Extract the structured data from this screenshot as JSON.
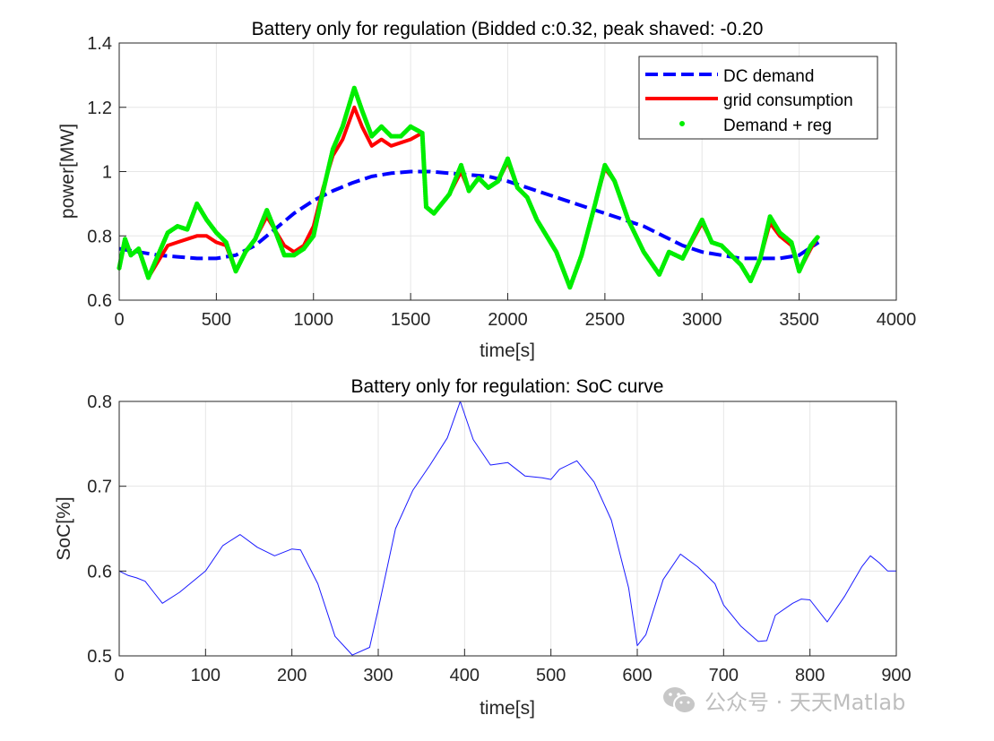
{
  "colors": {
    "dc_demand": "#0000FF",
    "grid_consumption": "#FF0000",
    "demand_reg": "#00EE00",
    "soc": "#1a1aff",
    "grid": "#e6e6e6",
    "axes": "#262626"
  },
  "watermark": {
    "text": "公众号 · 天天Matlab",
    "icon": "wechat-icon"
  },
  "chart_data": [
    {
      "type": "line",
      "title": "Battery only for regulation (Bidded c:0.32, peak shaved: -0.20",
      "xlabel": "time[s]",
      "ylabel": "power[MW]",
      "xlim": [
        0,
        4000
      ],
      "ylim": [
        0.6,
        1.4
      ],
      "xticks": [
        0,
        500,
        1000,
        1500,
        2000,
        2500,
        3000,
        3500,
        4000
      ],
      "yticks": [
        0.6,
        0.8,
        1,
        1.2,
        1.4
      ],
      "ytick_labels": [
        "0.6",
        "0.8",
        "1",
        "1.2",
        "1.4"
      ],
      "grid": true,
      "legend_location": "top-right",
      "legend": [
        "DC demand",
        "grid consumption",
        "Demand + reg"
      ],
      "series": [
        {
          "name": "DC demand",
          "style": "dashed",
          "x": [
            0,
            100,
            200,
            300,
            400,
            500,
            600,
            700,
            800,
            900,
            1000,
            1100,
            1200,
            1300,
            1400,
            1500,
            1600,
            1700,
            1800,
            1900,
            2000,
            2100,
            2200,
            2300,
            2400,
            2500,
            2600,
            2700,
            2800,
            2900,
            3000,
            3100,
            3200,
            3300,
            3400,
            3500,
            3600
          ],
          "values": [
            0.76,
            0.75,
            0.74,
            0.735,
            0.73,
            0.73,
            0.74,
            0.77,
            0.82,
            0.87,
            0.91,
            0.94,
            0.965,
            0.985,
            0.995,
            1.0,
            1.0,
            0.995,
            0.99,
            0.985,
            0.97,
            0.95,
            0.93,
            0.91,
            0.89,
            0.87,
            0.85,
            0.83,
            0.8,
            0.77,
            0.75,
            0.74,
            0.73,
            0.73,
            0.73,
            0.74,
            0.78
          ]
        },
        {
          "name": "grid consumption",
          "style": "solid",
          "x": [
            0,
            30,
            60,
            100,
            150,
            200,
            250,
            300,
            350,
            400,
            450,
            500,
            550,
            600,
            650,
            700,
            760,
            800,
            850,
            900,
            950,
            1000,
            1050,
            1100,
            1150,
            1210,
            1250,
            1300,
            1350,
            1400,
            1450,
            1500,
            1560,
            1580,
            1620,
            1700,
            1760,
            1800,
            1850,
            1900,
            1950,
            2000,
            2050,
            2100,
            2150,
            2200,
            2250,
            2320,
            2380,
            2450,
            2500,
            2550,
            2620,
            2700,
            2780,
            2830,
            2900,
            3000,
            3050,
            3100,
            3200,
            3250,
            3300,
            3350,
            3400,
            3460,
            3500,
            3560,
            3600
          ],
          "values": [
            0.7,
            0.78,
            0.74,
            0.76,
            0.67,
            0.72,
            0.77,
            0.78,
            0.79,
            0.8,
            0.8,
            0.78,
            0.77,
            0.69,
            0.75,
            0.79,
            0.86,
            0.82,
            0.77,
            0.75,
            0.77,
            0.83,
            0.95,
            1.05,
            1.1,
            1.2,
            1.14,
            1.08,
            1.1,
            1.08,
            1.09,
            1.1,
            1.12,
            0.89,
            0.87,
            0.93,
            1.0,
            0.94,
            0.98,
            0.95,
            0.97,
            1.03,
            0.95,
            0.92,
            0.85,
            0.8,
            0.75,
            0.64,
            0.74,
            0.9,
            1.01,
            0.97,
            0.85,
            0.75,
            0.68,
            0.75,
            0.73,
            0.84,
            0.78,
            0.77,
            0.71,
            0.66,
            0.73,
            0.84,
            0.8,
            0.77,
            0.69,
            0.76,
            0.8
          ]
        },
        {
          "name": "Demand + reg",
          "style": "dots",
          "x": [
            0,
            30,
            60,
            100,
            150,
            200,
            250,
            300,
            350,
            400,
            450,
            500,
            550,
            600,
            650,
            700,
            760,
            800,
            850,
            900,
            950,
            1000,
            1050,
            1100,
            1150,
            1210,
            1250,
            1300,
            1350,
            1400,
            1450,
            1500,
            1560,
            1580,
            1620,
            1700,
            1760,
            1800,
            1850,
            1900,
            1950,
            2000,
            2050,
            2100,
            2150,
            2200,
            2250,
            2320,
            2380,
            2450,
            2500,
            2550,
            2620,
            2700,
            2780,
            2830,
            2900,
            3000,
            3050,
            3100,
            3200,
            3250,
            3300,
            3350,
            3400,
            3460,
            3500,
            3560,
            3600
          ],
          "values": [
            0.7,
            0.79,
            0.74,
            0.76,
            0.67,
            0.74,
            0.81,
            0.83,
            0.82,
            0.9,
            0.85,
            0.81,
            0.78,
            0.69,
            0.75,
            0.79,
            0.88,
            0.82,
            0.74,
            0.74,
            0.76,
            0.8,
            0.94,
            1.07,
            1.14,
            1.26,
            1.19,
            1.11,
            1.14,
            1.11,
            1.11,
            1.14,
            1.12,
            0.89,
            0.87,
            0.93,
            1.02,
            0.94,
            0.98,
            0.95,
            0.97,
            1.04,
            0.95,
            0.92,
            0.85,
            0.8,
            0.75,
            0.64,
            0.74,
            0.9,
            1.02,
            0.97,
            0.85,
            0.75,
            0.68,
            0.75,
            0.73,
            0.85,
            0.78,
            0.77,
            0.71,
            0.66,
            0.73,
            0.86,
            0.81,
            0.78,
            0.69,
            0.77,
            0.8
          ]
        }
      ]
    },
    {
      "type": "line",
      "title": "Battery only for regulation: SoC curve",
      "xlabel": "time[s]",
      "ylabel": "SoC[%]",
      "xlim": [
        0,
        900
      ],
      "ylim": [
        0.5,
        0.8
      ],
      "xticks": [
        0,
        100,
        200,
        300,
        400,
        500,
        600,
        700,
        800,
        900
      ],
      "yticks": [
        0.5,
        0.6,
        0.7,
        0.8
      ],
      "ytick_labels": [
        "0.5",
        "0.6",
        "0.7",
        "0.8"
      ],
      "grid": true,
      "series": [
        {
          "name": "SoC",
          "style": "solid",
          "x": [
            0,
            10,
            20,
            30,
            40,
            50,
            70,
            100,
            120,
            140,
            160,
            180,
            200,
            210,
            230,
            250,
            270,
            290,
            300,
            320,
            340,
            360,
            380,
            395,
            410,
            430,
            450,
            470,
            490,
            500,
            510,
            530,
            550,
            570,
            590,
            600,
            610,
            630,
            650,
            670,
            690,
            700,
            720,
            740,
            750,
            760,
            780,
            790,
            800,
            820,
            840,
            860,
            870,
            880,
            890,
            900
          ],
          "values": [
            0.6,
            0.595,
            0.592,
            0.588,
            0.575,
            0.562,
            0.575,
            0.6,
            0.63,
            0.643,
            0.628,
            0.618,
            0.626,
            0.625,
            0.585,
            0.523,
            0.501,
            0.51,
            0.555,
            0.65,
            0.695,
            0.725,
            0.757,
            0.8,
            0.755,
            0.725,
            0.728,
            0.712,
            0.71,
            0.708,
            0.72,
            0.73,
            0.705,
            0.66,
            0.58,
            0.512,
            0.525,
            0.59,
            0.62,
            0.605,
            0.585,
            0.56,
            0.535,
            0.517,
            0.518,
            0.548,
            0.562,
            0.567,
            0.566,
            0.54,
            0.57,
            0.605,
            0.618,
            0.61,
            0.6,
            0.6
          ]
        }
      ]
    }
  ]
}
